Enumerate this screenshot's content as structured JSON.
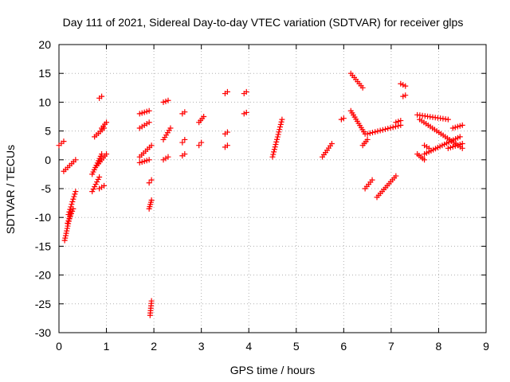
{
  "chart_data": {
    "type": "scatter",
    "title": "Day 111 of 2021, Sidereal Day-to-day VTEC variation (SDTVAR) for receiver glps",
    "xlabel": "GPS time / hours",
    "ylabel": "SDTVAR / TECUs",
    "xlim": [
      0,
      9
    ],
    "ylim": [
      -30,
      20
    ],
    "xticks": [
      "0",
      "1",
      "2",
      "3",
      "4",
      "5",
      "6",
      "7",
      "8",
      "9"
    ],
    "yticks": [
      "-30",
      "-25",
      "-20",
      "-15",
      "-10",
      "-5",
      "0",
      "5",
      "10",
      "15",
      "20"
    ],
    "grid": true,
    "marker": "+",
    "color": "#ff0000",
    "series": [
      {
        "name": "SDTVAR",
        "segments": [
          {
            "x": [
              0.0,
              0.1
            ],
            "y": [
              2.5,
              3.2
            ]
          },
          {
            "x": [
              0.1,
              0.35
            ],
            "y": [
              -2.0,
              0.0
            ]
          },
          {
            "x": [
              0.12,
              0.25
            ],
            "y": [
              -14.0,
              -9.0
            ]
          },
          {
            "x": [
              0.2,
              0.35
            ],
            "y": [
              -9.5,
              -5.5
            ]
          },
          {
            "x": [
              0.18,
              0.3
            ],
            "y": [
              -11.0,
              -8.5
            ]
          },
          {
            "x": [
              0.7,
              0.85
            ],
            "y": [
              -5.5,
              -3.0
            ]
          },
          {
            "x": [
              0.7,
              0.9
            ],
            "y": [
              -2.5,
              1.0
            ]
          },
          {
            "x": [
              0.75,
              0.95
            ],
            "y": [
              4.0,
              5.5
            ]
          },
          {
            "x": [
              0.85,
              0.9
            ],
            "y": [
              10.7,
              11.0
            ]
          },
          {
            "x": [
              0.9,
              1.0
            ],
            "y": [
              5.5,
              6.5
            ]
          },
          {
            "x": [
              0.8,
              1.0
            ],
            "y": [
              -1.0,
              1.0
            ]
          },
          {
            "x": [
              0.85,
              0.95
            ],
            "y": [
              -5.0,
              -4.5
            ]
          },
          {
            "x": [
              1.7,
              1.9
            ],
            "y": [
              8.0,
              8.5
            ]
          },
          {
            "x": [
              1.7,
              1.9
            ],
            "y": [
              5.5,
              6.5
            ]
          },
          {
            "x": [
              1.7,
              1.95
            ],
            "y": [
              0.5,
              2.5
            ]
          },
          {
            "x": [
              1.7,
              1.9
            ],
            "y": [
              -0.5,
              0.0
            ]
          },
          {
            "x": [
              1.9,
              1.95
            ],
            "y": [
              -4.0,
              -3.5
            ]
          },
          {
            "x": [
              1.9,
              1.95
            ],
            "y": [
              -8.5,
              -7.0
            ]
          },
          {
            "x": [
              1.92,
              1.95
            ],
            "y": [
              -27.0,
              -24.5
            ]
          },
          {
            "x": [
              2.2,
              2.35
            ],
            "y": [
              3.5,
              5.5
            ]
          },
          {
            "x": [
              2.2,
              2.3
            ],
            "y": [
              10.0,
              10.3
            ]
          },
          {
            "x": [
              2.2,
              2.3
            ],
            "y": [
              0.0,
              0.5
            ]
          },
          {
            "x": [
              2.6,
              2.65
            ],
            "y": [
              3.0,
              3.5
            ]
          },
          {
            "x": [
              2.6,
              2.65
            ],
            "y": [
              8.0,
              8.3
            ]
          },
          {
            "x": [
              2.6,
              2.65
            ],
            "y": [
              0.7,
              1.0
            ]
          },
          {
            "x": [
              2.95,
              3.05
            ],
            "y": [
              6.5,
              7.5
            ]
          },
          {
            "x": [
              2.95,
              3.0
            ],
            "y": [
              2.5,
              3.0
            ]
          },
          {
            "x": [
              3.5,
              3.55
            ],
            "y": [
              11.5,
              11.8
            ]
          },
          {
            "x": [
              3.5,
              3.55
            ],
            "y": [
              4.5,
              4.8
            ]
          },
          {
            "x": [
              3.5,
              3.55
            ],
            "y": [
              2.2,
              2.5
            ]
          },
          {
            "x": [
              3.9,
              3.95
            ],
            "y": [
              11.5,
              11.8
            ]
          },
          {
            "x": [
              3.9,
              3.95
            ],
            "y": [
              8.0,
              8.2
            ]
          },
          {
            "x": [
              4.5,
              4.7
            ],
            "y": [
              0.5,
              7.0
            ]
          },
          {
            "x": [
              5.55,
              5.75
            ],
            "y": [
              0.5,
              2.8
            ]
          },
          {
            "x": [
              5.95,
              6.0
            ],
            "y": [
              7.0,
              7.2
            ]
          },
          {
            "x": [
              6.15,
              6.4
            ],
            "y": [
              15.0,
              12.5
            ]
          },
          {
            "x": [
              6.15,
              6.45
            ],
            "y": [
              8.5,
              4.5
            ]
          },
          {
            "x": [
              6.4,
              6.5
            ],
            "y": [
              2.5,
              3.5
            ]
          },
          {
            "x": [
              6.45,
              6.6
            ],
            "y": [
              -5.0,
              -3.5
            ]
          },
          {
            "x": [
              6.5,
              7.2
            ],
            "y": [
              4.5,
              6.0
            ]
          },
          {
            "x": [
              6.7,
              7.1
            ],
            "y": [
              -6.5,
              -2.8
            ]
          },
          {
            "x": [
              7.1,
              7.2
            ],
            "y": [
              6.5,
              6.8
            ]
          },
          {
            "x": [
              7.2,
              7.3
            ],
            "y": [
              13.2,
              12.8
            ]
          },
          {
            "x": [
              7.25,
              7.3
            ],
            "y": [
              11.0,
              11.2
            ]
          },
          {
            "x": [
              7.55,
              8.2
            ],
            "y": [
              7.8,
              7.0
            ]
          },
          {
            "x": [
              7.6,
              8.5
            ],
            "y": [
              7.0,
              2.0
            ]
          },
          {
            "x": [
              7.55,
              7.7
            ],
            "y": [
              1.0,
              0.0
            ]
          },
          {
            "x": [
              7.7,
              8.45
            ],
            "y": [
              1.0,
              4.0
            ]
          },
          {
            "x": [
              8.2,
              8.5
            ],
            "y": [
              2.0,
              2.8
            ]
          },
          {
            "x": [
              8.3,
              8.5
            ],
            "y": [
              5.5,
              6.0
            ]
          },
          {
            "x": [
              7.7,
              7.8
            ],
            "y": [
              2.5,
              2.0
            ]
          }
        ]
      }
    ]
  }
}
